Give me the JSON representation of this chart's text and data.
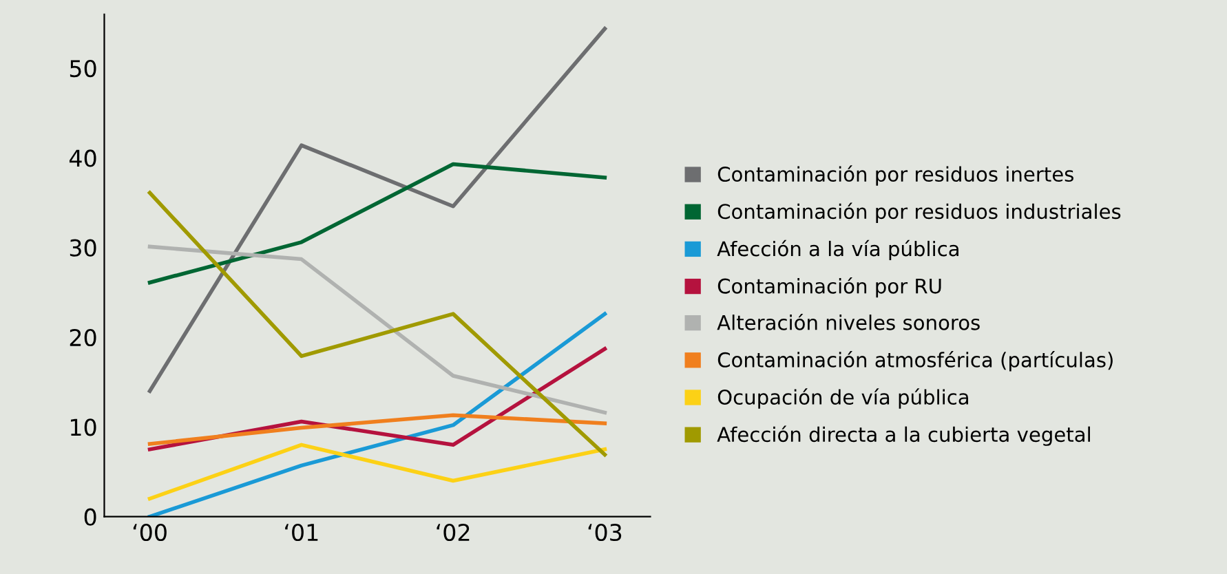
{
  "chart_data": {
    "type": "line",
    "categories": [
      "‘00",
      "‘01",
      "‘02",
      "‘03"
    ],
    "ylim": [
      0,
      56
    ],
    "yticks": [
      0,
      10,
      20,
      30,
      40,
      50
    ],
    "grid": false,
    "legend": "right",
    "marker": "none",
    "line_style": "solid",
    "series": [
      {
        "name": "Contaminación por residuos inertes",
        "color": "#6d6e70",
        "values": [
          14,
          41.4,
          34.6,
          54.4
        ]
      },
      {
        "name": "Contaminación por residuos industriales",
        "color": "#006633",
        "values": [
          26.1,
          30.6,
          39.3,
          37.8
        ]
      },
      {
        "name": "Afección a la vía pública",
        "color": "#1a9ad6",
        "values": [
          0,
          5.7,
          10.2,
          22.6
        ]
      },
      {
        "name": "Contaminación por RU",
        "color": "#b5123e",
        "values": [
          7.5,
          10.6,
          8.0,
          18.7
        ]
      },
      {
        "name": "Alteración niveles sonoros",
        "color": "#b0b2b0",
        "values": [
          30.1,
          28.7,
          15.7,
          11.6
        ]
      },
      {
        "name": "Contaminación atmosférica (partículas)",
        "color": "#f07f1e",
        "values": [
          8.1,
          9.9,
          11.3,
          10.4
        ]
      },
      {
        "name": "Ocupación de vía pública",
        "color": "#fcd116",
        "values": [
          2.0,
          8.0,
          4.0,
          7.5
        ]
      },
      {
        "name": "Afección directa a la cubierta vegetal",
        "color": "#a09a00",
        "values": [
          36.1,
          17.9,
          22.6,
          6.9
        ]
      }
    ]
  }
}
